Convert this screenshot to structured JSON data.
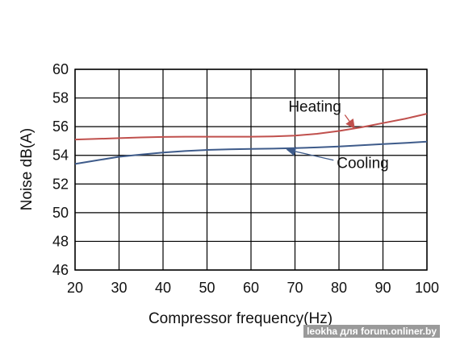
{
  "chart_data": {
    "type": "line",
    "title": "",
    "xlabel": "Compressor frequency(Hz)",
    "ylabel": "Noise dB(A)",
    "xlim": [
      20,
      100
    ],
    "ylim": [
      46,
      60
    ],
    "x_ticks": [
      20,
      30,
      40,
      50,
      60,
      70,
      80,
      90,
      100
    ],
    "y_ticks": [
      46,
      48,
      50,
      52,
      54,
      56,
      58,
      60
    ],
    "grid": true,
    "legend": "none",
    "series": [
      {
        "name": "Heating",
        "color": "#c0504d",
        "x": [
          20,
          25,
          30,
          35,
          40,
          45,
          50,
          55,
          60,
          65,
          70,
          75,
          80,
          85,
          90,
          95,
          100
        ],
        "y": [
          55.1,
          55.15,
          55.2,
          55.25,
          55.28,
          55.3,
          55.3,
          55.3,
          55.3,
          55.32,
          55.38,
          55.5,
          55.7,
          55.95,
          56.25,
          56.55,
          56.9
        ]
      },
      {
        "name": "Cooling",
        "color": "#3e5b8a",
        "x": [
          20,
          25,
          30,
          35,
          40,
          45,
          50,
          55,
          60,
          65,
          70,
          75,
          80,
          85,
          90,
          95,
          100
        ],
        "y": [
          53.4,
          53.65,
          53.9,
          54.05,
          54.2,
          54.3,
          54.38,
          54.42,
          54.45,
          54.47,
          54.5,
          54.55,
          54.62,
          54.7,
          54.78,
          54.86,
          54.95
        ]
      }
    ],
    "annotations": [
      {
        "text": "Heating",
        "series": "Heating",
        "text_at": [
          68.5,
          57.05
        ],
        "arrow_to": [
          83.5,
          55.9
        ]
      },
      {
        "text": "Cooling",
        "series": "Cooling",
        "text_at": [
          79.5,
          53.1
        ],
        "arrow_to": [
          68.2,
          54.4
        ]
      }
    ]
  },
  "watermark": "leokha для forum.onliner.by"
}
